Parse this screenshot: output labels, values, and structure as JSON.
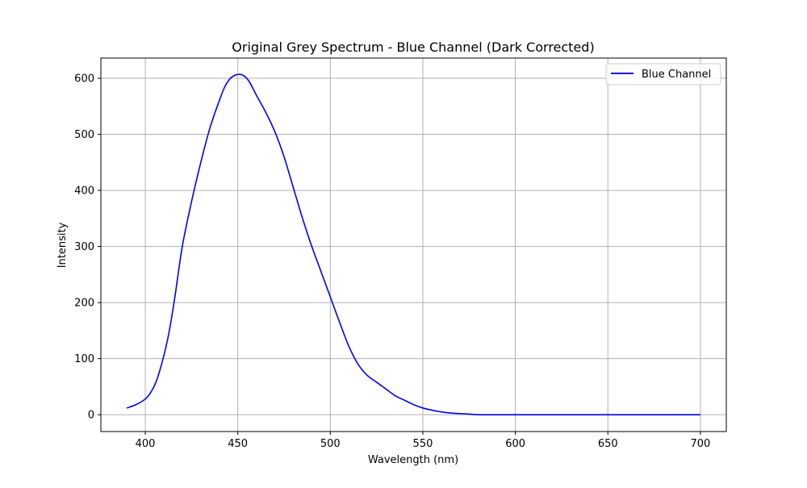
{
  "colors": {
    "line": "#0000ff",
    "grid": "#b0b0b0",
    "axis": "#000000",
    "background": "#ffffff"
  },
  "chart_data": {
    "type": "line",
    "title": "Original Grey Spectrum - Blue Channel (Dark Corrected)",
    "xlabel": "Wavelength (nm)",
    "ylabel": "Intensity",
    "xlim": [
      376,
      714
    ],
    "ylim": [
      -30,
      636
    ],
    "xticks": [
      400,
      450,
      500,
      550,
      600,
      650,
      700
    ],
    "yticks": [
      0,
      100,
      200,
      300,
      400,
      500,
      600
    ],
    "grid": true,
    "legend_position": "top-right",
    "series": [
      {
        "name": "Blue Channel",
        "color": "#0000ff",
        "x": [
          390,
          395,
          400,
          403,
          406,
          410,
          413,
          416,
          420,
          425,
          430,
          435,
          440,
          443,
          446,
          449,
          451,
          453,
          456,
          460,
          465,
          470,
          475,
          480,
          485,
          490,
          495,
          500,
          505,
          510,
          515,
          520,
          525,
          530,
          535,
          540,
          545,
          550,
          555,
          560,
          565,
          570,
          575,
          580,
          590,
          600,
          650,
          700
        ],
        "y": [
          12,
          18,
          28,
          40,
          60,
          105,
          150,
          210,
          300,
          380,
          450,
          512,
          560,
          585,
          600,
          606,
          607,
          605,
          595,
          570,
          540,
          505,
          460,
          405,
          350,
          300,
          255,
          210,
          165,
          122,
          90,
          70,
          58,
          46,
          34,
          26,
          18,
          12,
          8,
          5,
          3,
          2,
          1,
          0,
          0,
          0,
          0,
          0
        ]
      }
    ]
  }
}
